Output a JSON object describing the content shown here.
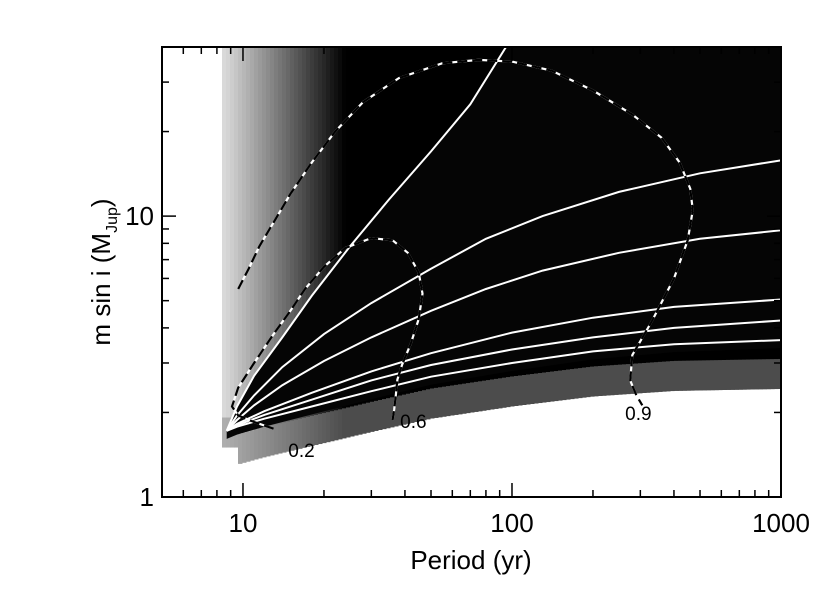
{
  "chart_data": {
    "type": "heatmap",
    "title": "",
    "xlabel": "Period (yr)",
    "ylabel_main": "m sin i (M",
    "ylabel_sub": "Jup",
    "ylabel_close": ")",
    "xscale": "log",
    "yscale": "log",
    "xlim": [
      5,
      1000
    ],
    "ylim": [
      1,
      40
    ],
    "x_ticks": [
      {
        "value": 10,
        "label": "10"
      },
      {
        "value": 100,
        "label": "100"
      },
      {
        "value": 1000,
        "label": "1000"
      }
    ],
    "y_ticks": [
      {
        "value": 1,
        "label": "1"
      },
      {
        "value": 10,
        "label": "10"
      }
    ],
    "colormap": "grayscale, black = high value, white = low value",
    "colors": {
      "background": "#ffffff",
      "dark": "#000000",
      "light": "#ffffff",
      "axis": "#000000"
    },
    "grid": false,
    "white_contours": [
      {
        "points": [
          [
            8.7,
            1.72
          ],
          [
            9.5,
            2.1
          ],
          [
            11,
            2.7
          ],
          [
            14,
            3.7
          ],
          [
            18,
            5.2
          ],
          [
            25,
            7.8
          ],
          [
            35,
            11.5
          ],
          [
            50,
            17
          ],
          [
            70,
            25
          ],
          [
            95,
            40
          ]
        ]
      },
      {
        "points": [
          [
            8.7,
            1.72
          ],
          [
            9.5,
            1.95
          ],
          [
            11,
            2.3
          ],
          [
            14,
            2.9
          ],
          [
            20,
            3.8
          ],
          [
            30,
            4.9
          ],
          [
            50,
            6.5
          ],
          [
            80,
            8.3
          ],
          [
            130,
            10
          ],
          [
            250,
            12.2
          ],
          [
            500,
            14.2
          ],
          [
            1000,
            15.8
          ]
        ]
      },
      {
        "points": [
          [
            8.7,
            1.72
          ],
          [
            9.5,
            1.88
          ],
          [
            11,
            2.12
          ],
          [
            14,
            2.5
          ],
          [
            20,
            3.05
          ],
          [
            30,
            3.7
          ],
          [
            50,
            4.6
          ],
          [
            80,
            5.5
          ],
          [
            130,
            6.4
          ],
          [
            250,
            7.4
          ],
          [
            500,
            8.3
          ],
          [
            1000,
            8.9
          ]
        ]
      },
      {
        "points": [
          [
            8.7,
            1.72
          ],
          [
            9.5,
            1.82
          ],
          [
            12,
            2.02
          ],
          [
            18,
            2.35
          ],
          [
            30,
            2.8
          ],
          [
            50,
            3.25
          ],
          [
            100,
            3.85
          ],
          [
            200,
            4.35
          ],
          [
            400,
            4.75
          ],
          [
            1000,
            5.05
          ]
        ]
      },
      {
        "points": [
          [
            8.7,
            1.72
          ],
          [
            9.5,
            1.8
          ],
          [
            12,
            1.96
          ],
          [
            18,
            2.22
          ],
          [
            30,
            2.6
          ],
          [
            50,
            2.95
          ],
          [
            100,
            3.35
          ],
          [
            200,
            3.7
          ],
          [
            400,
            4.0
          ],
          [
            1000,
            4.25
          ]
        ]
      },
      {
        "points": [
          [
            8.7,
            1.72
          ],
          [
            9.5,
            1.78
          ],
          [
            12,
            1.9
          ],
          [
            18,
            2.1
          ],
          [
            30,
            2.38
          ],
          [
            50,
            2.68
          ],
          [
            100,
            3.0
          ],
          [
            200,
            3.3
          ],
          [
            400,
            3.5
          ],
          [
            1000,
            3.62
          ]
        ]
      }
    ],
    "dashed_contours": [
      {
        "label": "0.2",
        "label_x": 16.5,
        "label_y": 1.39,
        "points": [
          [
            13,
            1.75
          ],
          [
            11,
            1.85
          ],
          [
            9.6,
            1.95
          ],
          [
            9.1,
            2.1
          ],
          [
            9.6,
            2.45
          ],
          [
            11,
            3.0
          ],
          [
            13,
            3.8
          ],
          [
            15,
            4.6
          ],
          [
            17,
            5.5
          ],
          [
            20,
            6.6
          ],
          [
            24,
            7.7
          ],
          [
            30,
            8.35
          ],
          [
            36,
            8.2
          ],
          [
            41,
            7.4
          ],
          [
            45,
            6.3
          ],
          [
            46.5,
            5.3
          ],
          [
            45,
            4.3
          ],
          [
            42,
            3.5
          ],
          [
            39,
            2.95
          ],
          [
            37.5,
            2.62
          ],
          [
            37,
            2.3
          ],
          [
            36.5,
            2.05
          ],
          [
            36,
            1.88
          ]
        ]
      },
      {
        "label": "0.6",
        "label_x": 43,
        "label_y": 1.76,
        "points": [
          [
            9.6,
            5.5
          ],
          [
            10.5,
            6.5
          ],
          [
            11.5,
            7.8
          ],
          [
            13,
            9.5
          ],
          [
            15,
            12
          ],
          [
            18,
            15.5
          ],
          [
            22,
            20
          ],
          [
            28,
            25.5
          ],
          [
            38,
            31
          ],
          [
            55,
            35
          ],
          [
            75,
            36
          ],
          [
            100,
            35.5
          ],
          [
            140,
            33
          ],
          [
            200,
            28
          ],
          [
            280,
            23
          ],
          [
            360,
            19
          ],
          [
            420,
            15.5
          ],
          [
            460,
            12.5
          ],
          [
            470,
            10.5
          ],
          [
            450,
            8.2
          ],
          [
            400,
            6.0
          ],
          [
            330,
            4.2
          ],
          [
            280,
            3.2
          ],
          [
            275,
            2.6
          ],
          [
            290,
            2.3
          ],
          [
            305,
            2.12
          ]
        ]
      },
      {
        "label": "0.9",
        "label_x": 295,
        "label_y": 1.88,
        "points": []
      }
    ]
  }
}
